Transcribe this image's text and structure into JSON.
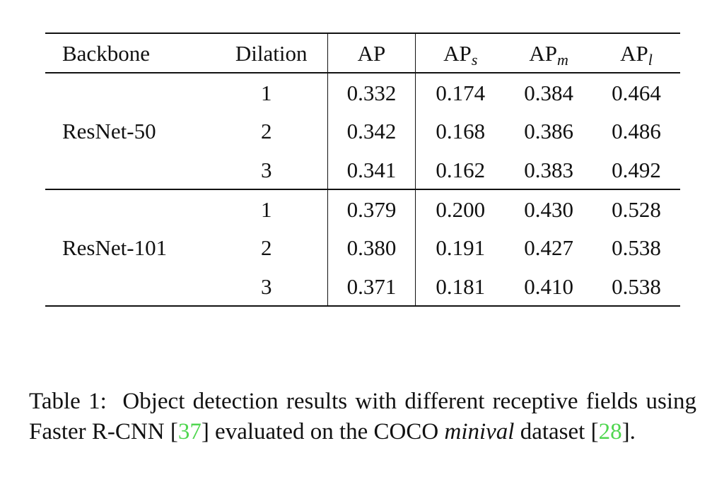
{
  "table": {
    "headers": {
      "backbone": "Backbone",
      "dilation": "Dilation",
      "ap": "AP",
      "ap_s_base": "AP",
      "ap_s_sub": "s",
      "ap_m_base": "AP",
      "ap_m_sub": "m",
      "ap_l_base": "AP",
      "ap_l_sub": "l"
    },
    "groups": [
      {
        "backbone": "ResNet-50",
        "rows": [
          {
            "dilation": "1",
            "ap": "0.332",
            "ap_s": "0.174",
            "ap_m": "0.384",
            "ap_l": "0.464"
          },
          {
            "dilation": "2",
            "ap": "0.342",
            "ap_s": "0.168",
            "ap_m": "0.386",
            "ap_l": "0.486"
          },
          {
            "dilation": "3",
            "ap": "0.341",
            "ap_s": "0.162",
            "ap_m": "0.383",
            "ap_l": "0.492"
          }
        ]
      },
      {
        "backbone": "ResNet-101",
        "rows": [
          {
            "dilation": "1",
            "ap": "0.379",
            "ap_s": "0.200",
            "ap_m": "0.430",
            "ap_l": "0.528"
          },
          {
            "dilation": "2",
            "ap": "0.380",
            "ap_s": "0.191",
            "ap_m": "0.427",
            "ap_l": "0.538"
          },
          {
            "dilation": "3",
            "ap": "0.371",
            "ap_s": "0.181",
            "ap_m": "0.410",
            "ap_l": "0.538"
          }
        ]
      }
    ]
  },
  "caption": {
    "label": "Table 1:",
    "text_part1": "Object detection results with different receptive fields using Faster R-CNN [",
    "ref1": "37",
    "text_part2": "] evaluated on the COCO ",
    "italic": "minival",
    "text_part3": " dataset [",
    "ref2": "28",
    "text_part4": "]."
  },
  "colors": {
    "text": "#111111",
    "citation_link": "#4fd64f"
  }
}
